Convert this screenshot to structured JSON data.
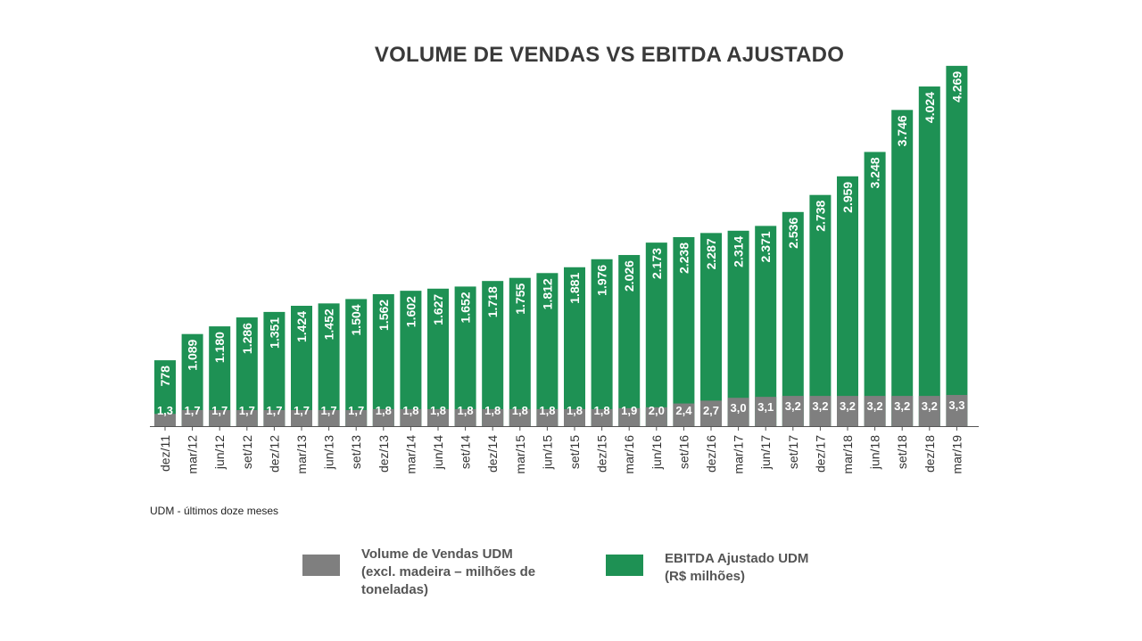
{
  "chart_data": {
    "type": "bar",
    "title": "VOLUME DE VENDAS VS EBITDA AJUSTADO",
    "categories": [
      "dez/11",
      "mar/12",
      "jun/12",
      "set/12",
      "dez/12",
      "mar/13",
      "jun/13",
      "set/13",
      "dez/13",
      "mar/14",
      "jun/14",
      "set/14",
      "dez/14",
      "mar/15",
      "jun/15",
      "set/15",
      "dez/15",
      "mar/16",
      "jun/16",
      "set/16",
      "dez/16",
      "mar/17",
      "jun/17",
      "set/17",
      "dez/17",
      "mar/18",
      "jun/18",
      "set/18",
      "dez/18",
      "mar/19"
    ],
    "series": [
      {
        "name": "Volume de Vendas UDM (excl. madeira – milhões de toneladas)",
        "color": "#7f7f7f",
        "values": [
          1.3,
          1.7,
          1.7,
          1.7,
          1.7,
          1.7,
          1.7,
          1.7,
          1.8,
          1.8,
          1.8,
          1.8,
          1.8,
          1.8,
          1.8,
          1.8,
          1.8,
          1.9,
          2.0,
          2.4,
          2.7,
          3.0,
          3.1,
          3.2,
          3.2,
          3.2,
          3.2,
          3.2,
          3.2,
          3.3
        ],
        "labels": [
          "1,3",
          "1,7",
          "1,7",
          "1,7",
          "1,7",
          "1,7",
          "1,7",
          "1,7",
          "1,8",
          "1,8",
          "1,8",
          "1,8",
          "1,8",
          "1,8",
          "1,8",
          "1,8",
          "1,8",
          "1,9",
          "2,0",
          "2,4",
          "2,7",
          "3,0",
          "3,1",
          "3,2",
          "3,2",
          "3,2",
          "3,2",
          "3,2",
          "3,2",
          "3,3"
        ]
      },
      {
        "name": "EBITDA Ajustado UDM (R$ milhões)",
        "color": "#1e9154",
        "values": [
          778,
          1089,
          1180,
          1286,
          1351,
          1424,
          1452,
          1504,
          1562,
          1602,
          1627,
          1652,
          1718,
          1755,
          1812,
          1881,
          1976,
          2026,
          2173,
          2238,
          2287,
          2314,
          2371,
          2536,
          2738,
          2959,
          3248,
          3746,
          4024,
          4269
        ],
        "labels": [
          "778",
          "1.089",
          "1.180",
          "1.286",
          "1.351",
          "1.424",
          "1.452",
          "1.504",
          "1.562",
          "1.602",
          "1.627",
          "1.652",
          "1.718",
          "1.755",
          "1.812",
          "1.881",
          "1.976",
          "2.026",
          "2.173",
          "2.238",
          "2.287",
          "2.314",
          "2.371",
          "2.536",
          "2.738",
          "2.959",
          "3.248",
          "3.746",
          "4.024",
          "4.269"
        ]
      }
    ],
    "legend_position": "bottom",
    "grid": false,
    "note": "UDM - últimos doze meses"
  },
  "legend": {
    "volume_line1": "Volume de Vendas UDM",
    "volume_line2": "(excl. madeira – milhões de",
    "volume_line3": "toneladas)",
    "ebitda_line1": "EBITDA Ajustado UDM",
    "ebitda_line2": "(R$ milhões)",
    "volume_color": "#7f7f7f",
    "ebitda_color": "#1e9154"
  }
}
